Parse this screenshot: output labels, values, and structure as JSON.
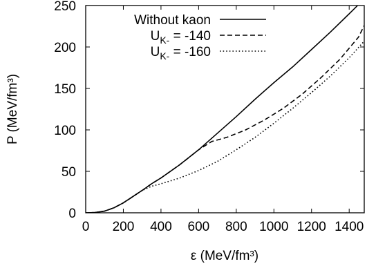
{
  "chart_data": {
    "type": "line",
    "xlabel": "ε (MeV/fm³)",
    "ylabel": "P (MeV/fm³)",
    "xlim": [
      0,
      1480
    ],
    "ylim": [
      0,
      250
    ],
    "x_ticks": [
      0,
      200,
      400,
      600,
      800,
      1000,
      1200,
      1400
    ],
    "y_ticks": [
      0,
      50,
      100,
      150,
      200,
      250
    ],
    "grid": false,
    "legend_position": "top-left",
    "series": [
      {
        "name": "Without kaon",
        "dash": "solid",
        "x": [
          0,
          50,
          100,
          150,
          200,
          250,
          300,
          350,
          400,
          500,
          600,
          700,
          800,
          900,
          1000,
          1100,
          1200,
          1300,
          1400,
          1480
        ],
        "y": [
          0,
          0.3,
          2,
          6,
          12,
          19.5,
          27,
          35,
          42,
          58,
          76,
          96,
          116,
          137,
          157,
          176,
          197,
          218,
          240,
          258
        ]
      },
      {
        "name": "U_K- = -140",
        "dash": "dashed",
        "x": [
          0,
          50,
          100,
          150,
          200,
          250,
          300,
          350,
          400,
          500,
          600,
          670,
          750,
          850,
          950,
          1050,
          1150,
          1250,
          1350,
          1450,
          1480
        ],
        "y": [
          0,
          0.3,
          2,
          6,
          12,
          19.5,
          27,
          35,
          42,
          58,
          76,
          86,
          91,
          100,
          112,
          126,
          143,
          163,
          185,
          212,
          226
        ]
      },
      {
        "name": "U_K- = -160",
        "dash": "dotted",
        "x": [
          0,
          50,
          100,
          150,
          200,
          250,
          300,
          350,
          400,
          500,
          600,
          700,
          800,
          900,
          1000,
          1100,
          1200,
          1300,
          1400,
          1480
        ],
        "y": [
          0,
          0.3,
          2,
          6,
          12,
          19.5,
          27,
          32,
          35,
          42,
          51,
          62,
          76,
          91,
          108,
          126,
          145,
          165,
          187,
          207
        ]
      }
    ],
    "legend_entries": [
      {
        "main": "Without kaon",
        "sub": ""
      },
      {
        "main": "U",
        "sub": "K-",
        "rest": " = -140"
      },
      {
        "main": "U",
        "sub": "K-",
        "rest": " = -160"
      }
    ]
  }
}
